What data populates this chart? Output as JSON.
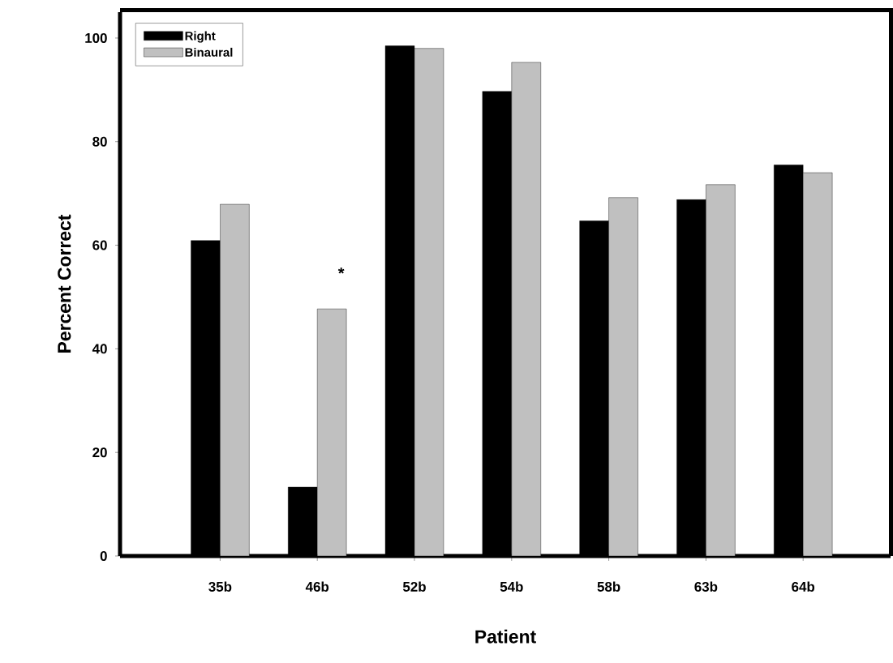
{
  "chart_data": {
    "type": "bar",
    "xlabel": "Patient",
    "ylabel": "Percent Correct",
    "categories": [
      "35b",
      "46b",
      "52b",
      "54b",
      "58b",
      "63b",
      "64b"
    ],
    "series": [
      {
        "name": "Right",
        "color": "#000000",
        "values": [
          60.9,
          13.3,
          98.5,
          89.7,
          64.7,
          68.8,
          75.5
        ]
      },
      {
        "name": "Binaural",
        "color": "#c0c0c0",
        "values": [
          67.9,
          47.7,
          98.0,
          95.3,
          69.2,
          71.7,
          74.0
        ]
      }
    ],
    "ylim": [
      0,
      105
    ],
    "yticks": [
      0,
      20,
      40,
      60,
      80,
      100
    ],
    "legend": "top left",
    "annotations": [
      "*"
    ]
  }
}
